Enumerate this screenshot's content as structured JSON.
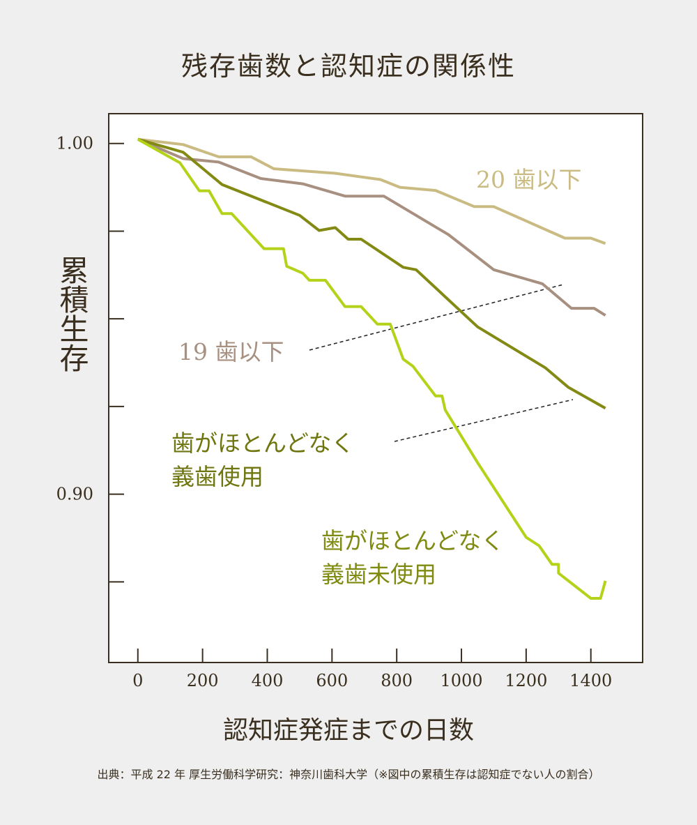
{
  "chart_data": {
    "type": "line",
    "title": "残存歯数と認知症の関係性",
    "xlabel": "認知症発症までの日数",
    "ylabel": "累積生存",
    "xlim": [
      -90,
      1560
    ],
    "ylim": [
      0.852,
      1.0085
    ],
    "x_ticks": [
      0,
      200,
      400,
      600,
      800,
      1000,
      1200,
      1400
    ],
    "x_tick_labels": [
      "0",
      "200",
      "400",
      "600",
      "800",
      "1000",
      "1200",
      "1400"
    ],
    "y_ticks": [
      1.0,
      0.975,
      0.95,
      0.925,
      0.9,
      0.875
    ],
    "y_tick_labels": [
      "1.00",
      "",
      "",
      "",
      "0.90",
      ""
    ],
    "grid": false,
    "series": [
      {
        "name": "20 歯以下",
        "color": "#c9bb82",
        "label_lines": [
          "20 歯以下"
        ],
        "points": [
          [
            0,
            1.0012
          ],
          [
            140,
            0.9997
          ],
          [
            250,
            0.9962
          ],
          [
            350,
            0.9962
          ],
          [
            420,
            0.9928
          ],
          [
            610,
            0.9915
          ],
          [
            750,
            0.9897
          ],
          [
            810,
            0.9875
          ],
          [
            920,
            0.9866
          ],
          [
            1040,
            0.982
          ],
          [
            1100,
            0.982
          ],
          [
            1320,
            0.973
          ],
          [
            1400,
            0.973
          ],
          [
            1445,
            0.9715
          ]
        ]
      },
      {
        "name": "19 歯以下",
        "color": "#a89080",
        "label_lines": [
          "19 歯以下"
        ],
        "points": [
          [
            0,
            1.0012
          ],
          [
            140,
            0.9957
          ],
          [
            250,
            0.9947
          ],
          [
            380,
            0.99
          ],
          [
            510,
            0.9885
          ],
          [
            640,
            0.985
          ],
          [
            760,
            0.985
          ],
          [
            960,
            0.974
          ],
          [
            1100,
            0.964
          ],
          [
            1250,
            0.96
          ],
          [
            1340,
            0.953
          ],
          [
            1410,
            0.953
          ],
          [
            1445,
            0.951
          ]
        ]
      },
      {
        "name": "歯がほとんどなく義歯使用",
        "color": "#838a14",
        "label_lines": [
          "歯がほとんどなく",
          "義歯使用"
        ],
        "points": [
          [
            0,
            1.0012
          ],
          [
            140,
            0.9975
          ],
          [
            260,
            0.9883
          ],
          [
            500,
            0.9795
          ],
          [
            560,
            0.9752
          ],
          [
            610,
            0.976
          ],
          [
            650,
            0.9727
          ],
          [
            690,
            0.9727
          ],
          [
            820,
            0.9647
          ],
          [
            860,
            0.964
          ],
          [
            1050,
            0.9477
          ],
          [
            1260,
            0.936
          ],
          [
            1330,
            0.9305
          ],
          [
            1445,
            0.9245
          ]
        ]
      },
      {
        "name": "歯がほとんどなく義歯未使用",
        "color": "#b5d21a",
        "label_lines": [
          "歯がほとんどなく",
          "義歯未使用"
        ],
        "points": [
          [
            0,
            1.0012
          ],
          [
            130,
            0.9945
          ],
          [
            190,
            0.9865
          ],
          [
            220,
            0.9865
          ],
          [
            260,
            0.98
          ],
          [
            290,
            0.98
          ],
          [
            390,
            0.97
          ],
          [
            450,
            0.97
          ],
          [
            460,
            0.965
          ],
          [
            510,
            0.963
          ],
          [
            530,
            0.961
          ],
          [
            580,
            0.961
          ],
          [
            640,
            0.9535
          ],
          [
            690,
            0.9535
          ],
          [
            740,
            0.9485
          ],
          [
            780,
            0.9485
          ],
          [
            820,
            0.9385
          ],
          [
            850,
            0.9365
          ],
          [
            920,
            0.928
          ],
          [
            940,
            0.928
          ],
          [
            950,
            0.924
          ],
          [
            1050,
            0.909
          ],
          [
            1200,
            0.8877
          ],
          [
            1240,
            0.8853
          ],
          [
            1280,
            0.88
          ],
          [
            1300,
            0.88
          ],
          [
            1300,
            0.8775
          ],
          [
            1400,
            0.8703
          ],
          [
            1430,
            0.8703
          ],
          [
            1445,
            0.8753
          ]
        ]
      }
    ]
  },
  "source": "出典：平成 22 年 厚生労働科学研究：神奈川歯科大学（※図中の累積生存は認知症でない人の割合）"
}
